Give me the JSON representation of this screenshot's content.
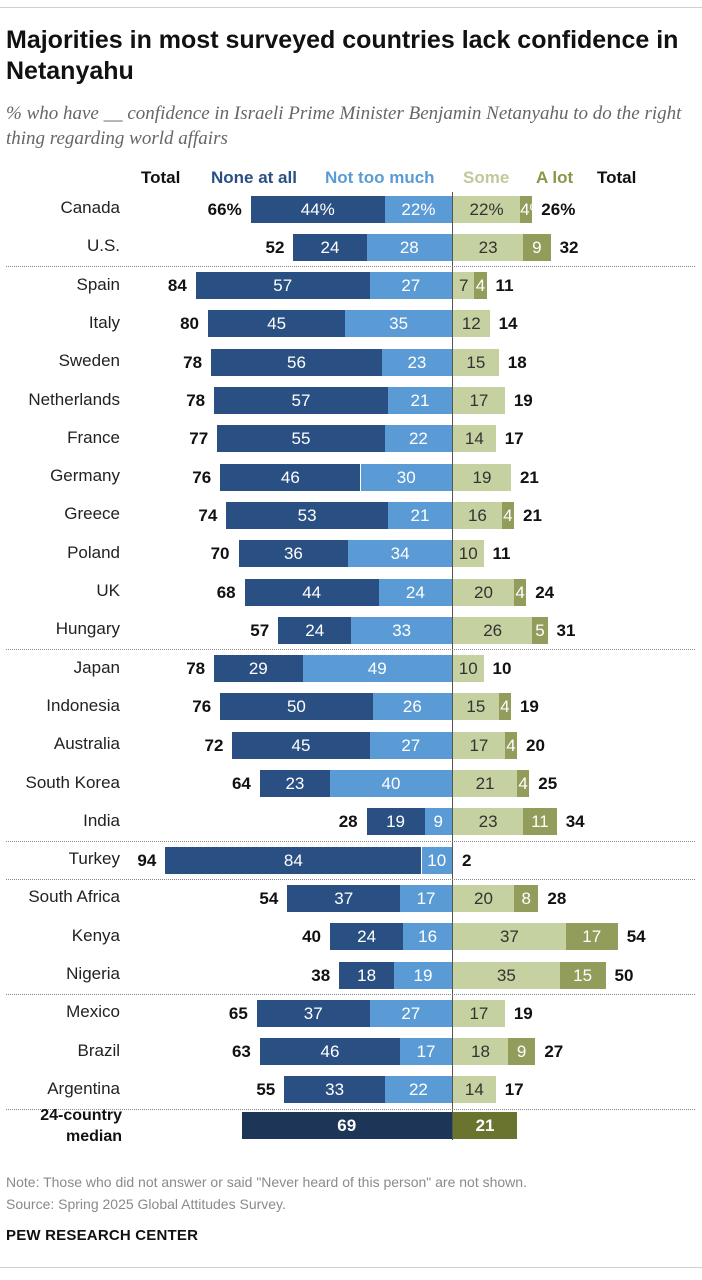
{
  "title": "Majorities in most surveyed countries lack confidence in Netanyahu",
  "subtitle": "% who have __ confidence in Israeli Prime Minister Benjamin Netanyahu to do the right thing regarding world affairs",
  "headers": {
    "total_left": "Total",
    "none": "None at all",
    "not_too_much": "Not too much",
    "some": "Some",
    "a_lot": "A lot",
    "total_right": "Total"
  },
  "colors": {
    "none": "#2a5083",
    "not_too_much": "#5b9bd5",
    "some": "#c5d1a0",
    "a_lot": "#929d5b",
    "median_negative": "#1d3556",
    "median_positive": "#6a742f",
    "header_none": "#2a5083",
    "header_not_too_much": "#5b9bd5",
    "header_some": "#c0c99a",
    "header_a_lot": "#8b9548"
  },
  "chart_data": {
    "type": "bar",
    "orientation": "horizontal diverging stacked",
    "unit": "%",
    "categories": [
      "Canada",
      "U.S.",
      "Spain",
      "Italy",
      "Sweden",
      "Netherlands",
      "France",
      "Germany",
      "Greece",
      "Poland",
      "UK",
      "Hungary",
      "Japan",
      "Indonesia",
      "Australia",
      "South Korea",
      "India",
      "Turkey",
      "South Africa",
      "Kenya",
      "Nigeria",
      "Mexico",
      "Brazil",
      "Argentina"
    ],
    "series": [
      {
        "name": "None at all",
        "values": [
          44,
          24,
          57,
          45,
          56,
          57,
          55,
          46,
          53,
          36,
          44,
          24,
          29,
          50,
          45,
          23,
          19,
          84,
          37,
          24,
          18,
          37,
          46,
          33
        ],
        "labels": [
          "44%",
          "24",
          "57",
          "45",
          "56",
          "57",
          "55",
          "46",
          "53",
          "36",
          "44",
          "24",
          "29",
          "50",
          "45",
          "23",
          "19",
          "84",
          "37",
          "24",
          "18",
          "37",
          "46",
          "33"
        ]
      },
      {
        "name": "Not too much",
        "values": [
          22,
          28,
          27,
          35,
          23,
          21,
          22,
          30,
          21,
          34,
          24,
          33,
          49,
          26,
          27,
          40,
          9,
          10,
          17,
          16,
          19,
          27,
          17,
          22
        ],
        "labels": [
          "22%",
          "28",
          "27",
          "35",
          "23",
          "21",
          "22",
          "30",
          "21",
          "34",
          "24",
          "33",
          "49",
          "26",
          "27",
          "40",
          "9",
          "10",
          "17",
          "16",
          "19",
          "27",
          "17",
          "22"
        ]
      },
      {
        "name": "Some",
        "values": [
          22,
          23,
          7,
          12,
          15,
          17,
          14,
          19,
          16,
          10,
          20,
          26,
          10,
          15,
          17,
          21,
          23,
          null,
          20,
          37,
          35,
          17,
          18,
          14
        ],
        "labels": [
          "22%",
          "23",
          "7",
          "12",
          "15",
          "17",
          "14",
          "19",
          "16",
          "10",
          "20",
          "26",
          "10",
          "15",
          "17",
          "21",
          "23",
          "",
          "20",
          "37",
          "35",
          "17",
          "18",
          "14"
        ]
      },
      {
        "name": "A lot",
        "values": [
          4,
          9,
          4,
          null,
          null,
          null,
          null,
          null,
          4,
          null,
          4,
          5,
          null,
          4,
          4,
          4,
          11,
          null,
          8,
          17,
          15,
          null,
          9,
          null
        ],
        "labels": [
          "4%",
          "9",
          "4",
          "",
          "",
          "",
          "",
          "",
          "4",
          "",
          "4",
          "5",
          "",
          "4",
          "4",
          "4",
          "11",
          "",
          "8",
          "17",
          "15",
          "",
          "9",
          ""
        ]
      }
    ],
    "total_negative": [
      66,
      52,
      84,
      80,
      78,
      78,
      77,
      76,
      74,
      70,
      68,
      57,
      78,
      76,
      72,
      64,
      28,
      94,
      54,
      40,
      38,
      65,
      63,
      55
    ],
    "total_negative_labels": [
      "66%",
      "52",
      "84",
      "80",
      "78",
      "78",
      "77",
      "76",
      "74",
      "70",
      "68",
      "57",
      "78",
      "76",
      "72",
      "64",
      "28",
      "94",
      "54",
      "40",
      "38",
      "65",
      "63",
      "55"
    ],
    "total_positive": [
      26,
      32,
      11,
      14,
      18,
      19,
      17,
      21,
      21,
      11,
      24,
      31,
      10,
      19,
      20,
      25,
      34,
      2,
      28,
      54,
      50,
      19,
      27,
      17
    ],
    "total_positive_labels": [
      "26%",
      "32",
      "11",
      "14",
      "18",
      "19",
      "17",
      "21",
      "21",
      "11",
      "24",
      "31",
      "10",
      "19",
      "20",
      "25",
      "34",
      "2",
      "28",
      "54",
      "50",
      "19",
      "27",
      "17"
    ],
    "group_breaks_after": [
      "U.S.",
      "Hungary",
      "India",
      "Turkey",
      "Nigeria",
      "Argentina"
    ],
    "median": {
      "label": "24-country median",
      "negative": 69,
      "positive": 21
    }
  },
  "note": "Note: Those who did not answer or said \"Never heard of this person\" are not shown.",
  "source": "Source: Spring 2025 Global Attitudes Survey.",
  "brand": "PEW RESEARCH CENTER"
}
